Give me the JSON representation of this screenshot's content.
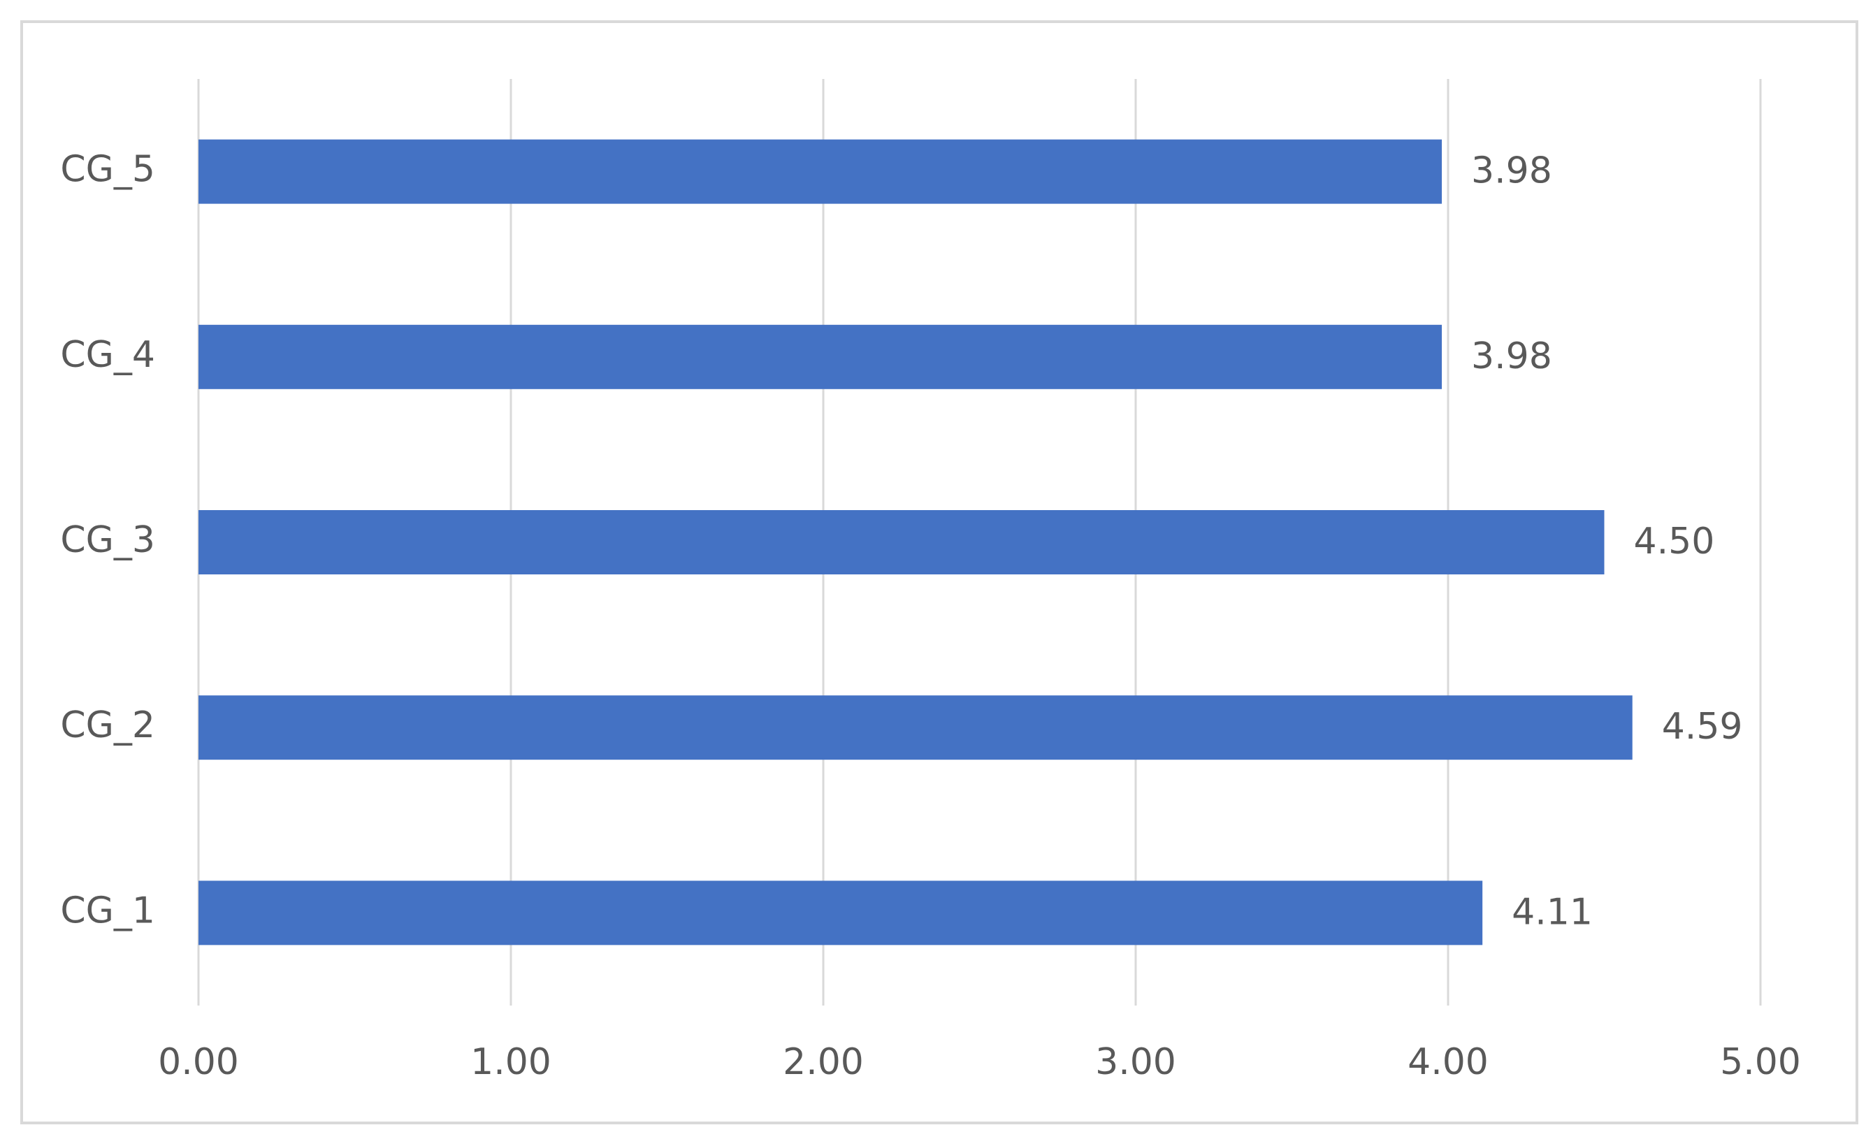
{
  "chart_data": {
    "type": "bar",
    "orientation": "horizontal",
    "categories": [
      "CG_1",
      "CG_2",
      "CG_3",
      "CG_4",
      "CG_5"
    ],
    "values": [
      4.11,
      4.59,
      4.5,
      3.98,
      3.98
    ],
    "value_labels": [
      "4.11",
      "4.59",
      "4.50",
      "3.98",
      "3.98"
    ],
    "color": "#4472c4",
    "xlim": [
      0,
      5
    ],
    "xticks": [
      {
        "value": 0,
        "label": "0.00"
      },
      {
        "value": 1,
        "label": "1.00"
      },
      {
        "value": 2,
        "label": "2.00"
      },
      {
        "value": 3,
        "label": "3.00"
      },
      {
        "value": 4,
        "label": "4.00"
      },
      {
        "value": 5,
        "label": "5.00"
      }
    ],
    "grid": true
  }
}
